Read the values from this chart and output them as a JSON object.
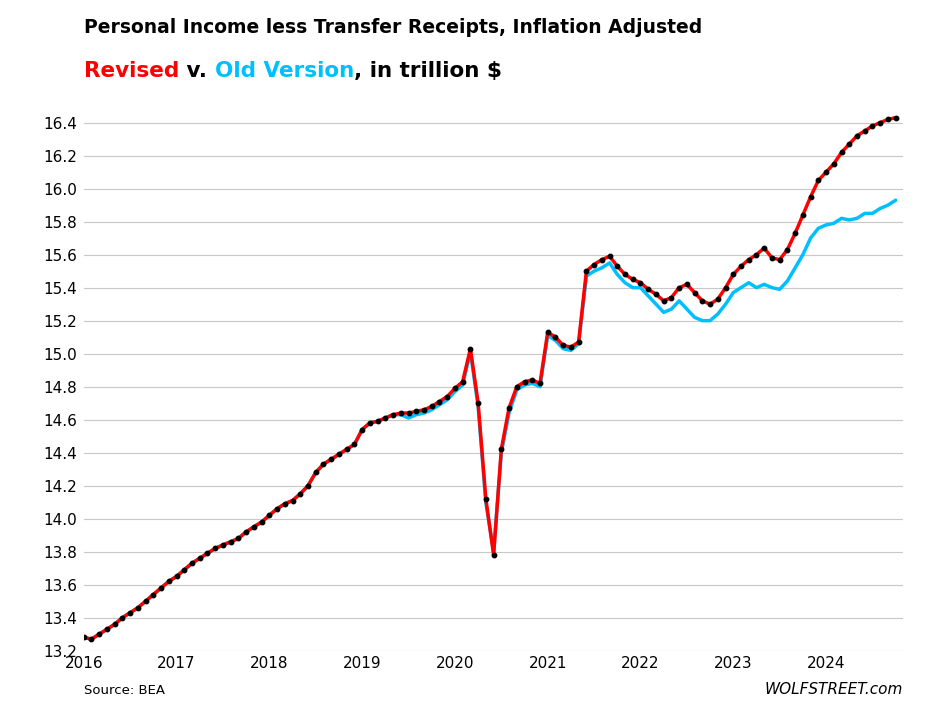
{
  "title_line1": "Personal Income less Transfer Receipts, Inflation Adjusted",
  "title_line2_parts": [
    {
      "text": "Revised",
      "color": "#ff0000"
    },
    {
      "text": " v. ",
      "color": "#000000"
    },
    {
      "text": "Old Version",
      "color": "#00bfff"
    },
    {
      "text": ", in trillion $",
      "color": "#000000"
    }
  ],
  "source_text": "Source: BEA",
  "watermark": "WOLFSTREET.com",
  "ylim": [
    13.2,
    16.45
  ],
  "yticks": [
    13.2,
    13.4,
    13.6,
    13.8,
    14.0,
    14.2,
    14.4,
    14.6,
    14.8,
    15.0,
    15.2,
    15.4,
    15.6,
    15.8,
    16.0,
    16.2,
    16.4
  ],
  "xlim_start": 2016.0,
  "xlim_end": 2024.83,
  "revised_color": "#ff0000",
  "old_color": "#00bfff",
  "dot_color": "#000000",
  "background_color": "#ffffff",
  "grid_color": "#c8c8c8",
  "revised_data": {
    "dates": [
      2016.0,
      2016.083,
      2016.167,
      2016.25,
      2016.333,
      2016.417,
      2016.5,
      2016.583,
      2016.667,
      2016.75,
      2016.833,
      2016.917,
      2017.0,
      2017.083,
      2017.167,
      2017.25,
      2017.333,
      2017.417,
      2017.5,
      2017.583,
      2017.667,
      2017.75,
      2017.833,
      2017.917,
      2018.0,
      2018.083,
      2018.167,
      2018.25,
      2018.333,
      2018.417,
      2018.5,
      2018.583,
      2018.667,
      2018.75,
      2018.833,
      2018.917,
      2019.0,
      2019.083,
      2019.167,
      2019.25,
      2019.333,
      2019.417,
      2019.5,
      2019.583,
      2019.667,
      2019.75,
      2019.833,
      2019.917,
      2020.0,
      2020.083,
      2020.167,
      2020.25,
      2020.333,
      2020.417,
      2020.5,
      2020.583,
      2020.667,
      2020.75,
      2020.833,
      2020.917,
      2021.0,
      2021.083,
      2021.167,
      2021.25,
      2021.333,
      2021.417,
      2021.5,
      2021.583,
      2021.667,
      2021.75,
      2021.833,
      2021.917,
      2022.0,
      2022.083,
      2022.167,
      2022.25,
      2022.333,
      2022.417,
      2022.5,
      2022.583,
      2022.667,
      2022.75,
      2022.833,
      2022.917,
      2023.0,
      2023.083,
      2023.167,
      2023.25,
      2023.333,
      2023.417,
      2023.5,
      2023.583,
      2023.667,
      2023.75,
      2023.833,
      2023.917,
      2024.0,
      2024.083,
      2024.167,
      2024.25,
      2024.333,
      2024.417,
      2024.5,
      2024.583,
      2024.667,
      2024.75
    ],
    "values": [
      13.28,
      13.27,
      13.3,
      13.33,
      13.36,
      13.4,
      13.43,
      13.46,
      13.5,
      13.54,
      13.58,
      13.62,
      13.65,
      13.69,
      13.73,
      13.76,
      13.79,
      13.82,
      13.84,
      13.86,
      13.88,
      13.92,
      13.95,
      13.98,
      14.02,
      14.06,
      14.09,
      14.11,
      14.15,
      14.2,
      14.28,
      14.33,
      14.36,
      14.39,
      14.42,
      14.45,
      14.54,
      14.58,
      14.59,
      14.61,
      14.63,
      14.64,
      14.64,
      14.65,
      14.66,
      14.68,
      14.71,
      14.74,
      14.79,
      14.83,
      15.03,
      14.7,
      14.12,
      13.78,
      14.42,
      14.67,
      14.8,
      14.83,
      14.84,
      14.82,
      15.13,
      15.1,
      15.05,
      15.04,
      15.07,
      15.5,
      15.54,
      15.57,
      15.59,
      15.53,
      15.48,
      15.45,
      15.43,
      15.39,
      15.36,
      15.32,
      15.34,
      15.4,
      15.42,
      15.37,
      15.32,
      15.3,
      15.33,
      15.4,
      15.48,
      15.53,
      15.57,
      15.6,
      15.64,
      15.58,
      15.57,
      15.63,
      15.73,
      15.84,
      15.95,
      16.05,
      16.1,
      16.15,
      16.22,
      16.27,
      16.32,
      16.35,
      16.38,
      16.4,
      16.42,
      16.43
    ]
  },
  "old_data": {
    "dates": [
      2016.0,
      2016.083,
      2016.167,
      2016.25,
      2016.333,
      2016.417,
      2016.5,
      2016.583,
      2016.667,
      2016.75,
      2016.833,
      2016.917,
      2017.0,
      2017.083,
      2017.167,
      2017.25,
      2017.333,
      2017.417,
      2017.5,
      2017.583,
      2017.667,
      2017.75,
      2017.833,
      2017.917,
      2018.0,
      2018.083,
      2018.167,
      2018.25,
      2018.333,
      2018.417,
      2018.5,
      2018.583,
      2018.667,
      2018.75,
      2018.833,
      2018.917,
      2019.0,
      2019.083,
      2019.167,
      2019.25,
      2019.333,
      2019.417,
      2019.5,
      2019.583,
      2019.667,
      2019.75,
      2019.833,
      2019.917,
      2020.0,
      2020.083,
      2020.167,
      2020.25,
      2020.333,
      2020.417,
      2020.5,
      2020.583,
      2020.667,
      2020.75,
      2020.833,
      2020.917,
      2021.0,
      2021.083,
      2021.167,
      2021.25,
      2021.333,
      2021.417,
      2021.5,
      2021.583,
      2021.667,
      2021.75,
      2021.833,
      2021.917,
      2022.0,
      2022.083,
      2022.167,
      2022.25,
      2022.333,
      2022.417,
      2022.5,
      2022.583,
      2022.667,
      2022.75,
      2022.833,
      2022.917,
      2023.0,
      2023.083,
      2023.167,
      2023.25,
      2023.333,
      2023.417,
      2023.5,
      2023.583,
      2023.667,
      2023.75,
      2023.833,
      2023.917,
      2024.0,
      2024.083,
      2024.167,
      2024.25,
      2024.333,
      2024.417,
      2024.5,
      2024.583,
      2024.667,
      2024.75
    ],
    "values": [
      13.28,
      13.27,
      13.3,
      13.33,
      13.36,
      13.4,
      13.43,
      13.46,
      13.5,
      13.54,
      13.58,
      13.62,
      13.65,
      13.69,
      13.73,
      13.76,
      13.79,
      13.82,
      13.84,
      13.86,
      13.88,
      13.92,
      13.95,
      13.98,
      14.02,
      14.06,
      14.09,
      14.11,
      14.15,
      14.2,
      14.28,
      14.33,
      14.36,
      14.39,
      14.42,
      14.45,
      14.54,
      14.58,
      14.59,
      14.61,
      14.63,
      14.63,
      14.61,
      14.63,
      14.64,
      14.66,
      14.69,
      14.72,
      14.77,
      14.81,
      15.01,
      14.68,
      14.1,
      13.8,
      14.4,
      14.64,
      14.78,
      14.81,
      14.82,
      14.8,
      15.11,
      15.08,
      15.03,
      15.02,
      15.06,
      15.47,
      15.5,
      15.52,
      15.55,
      15.48,
      15.43,
      15.4,
      15.4,
      15.35,
      15.3,
      15.25,
      15.27,
      15.32,
      15.27,
      15.22,
      15.2,
      15.2,
      15.24,
      15.3,
      15.37,
      15.4,
      15.43,
      15.4,
      15.42,
      15.4,
      15.39,
      15.44,
      15.52,
      15.6,
      15.7,
      15.76,
      15.78,
      15.79,
      15.82,
      15.81,
      15.82,
      15.85,
      15.85,
      15.88,
      15.9,
      15.93
    ]
  }
}
